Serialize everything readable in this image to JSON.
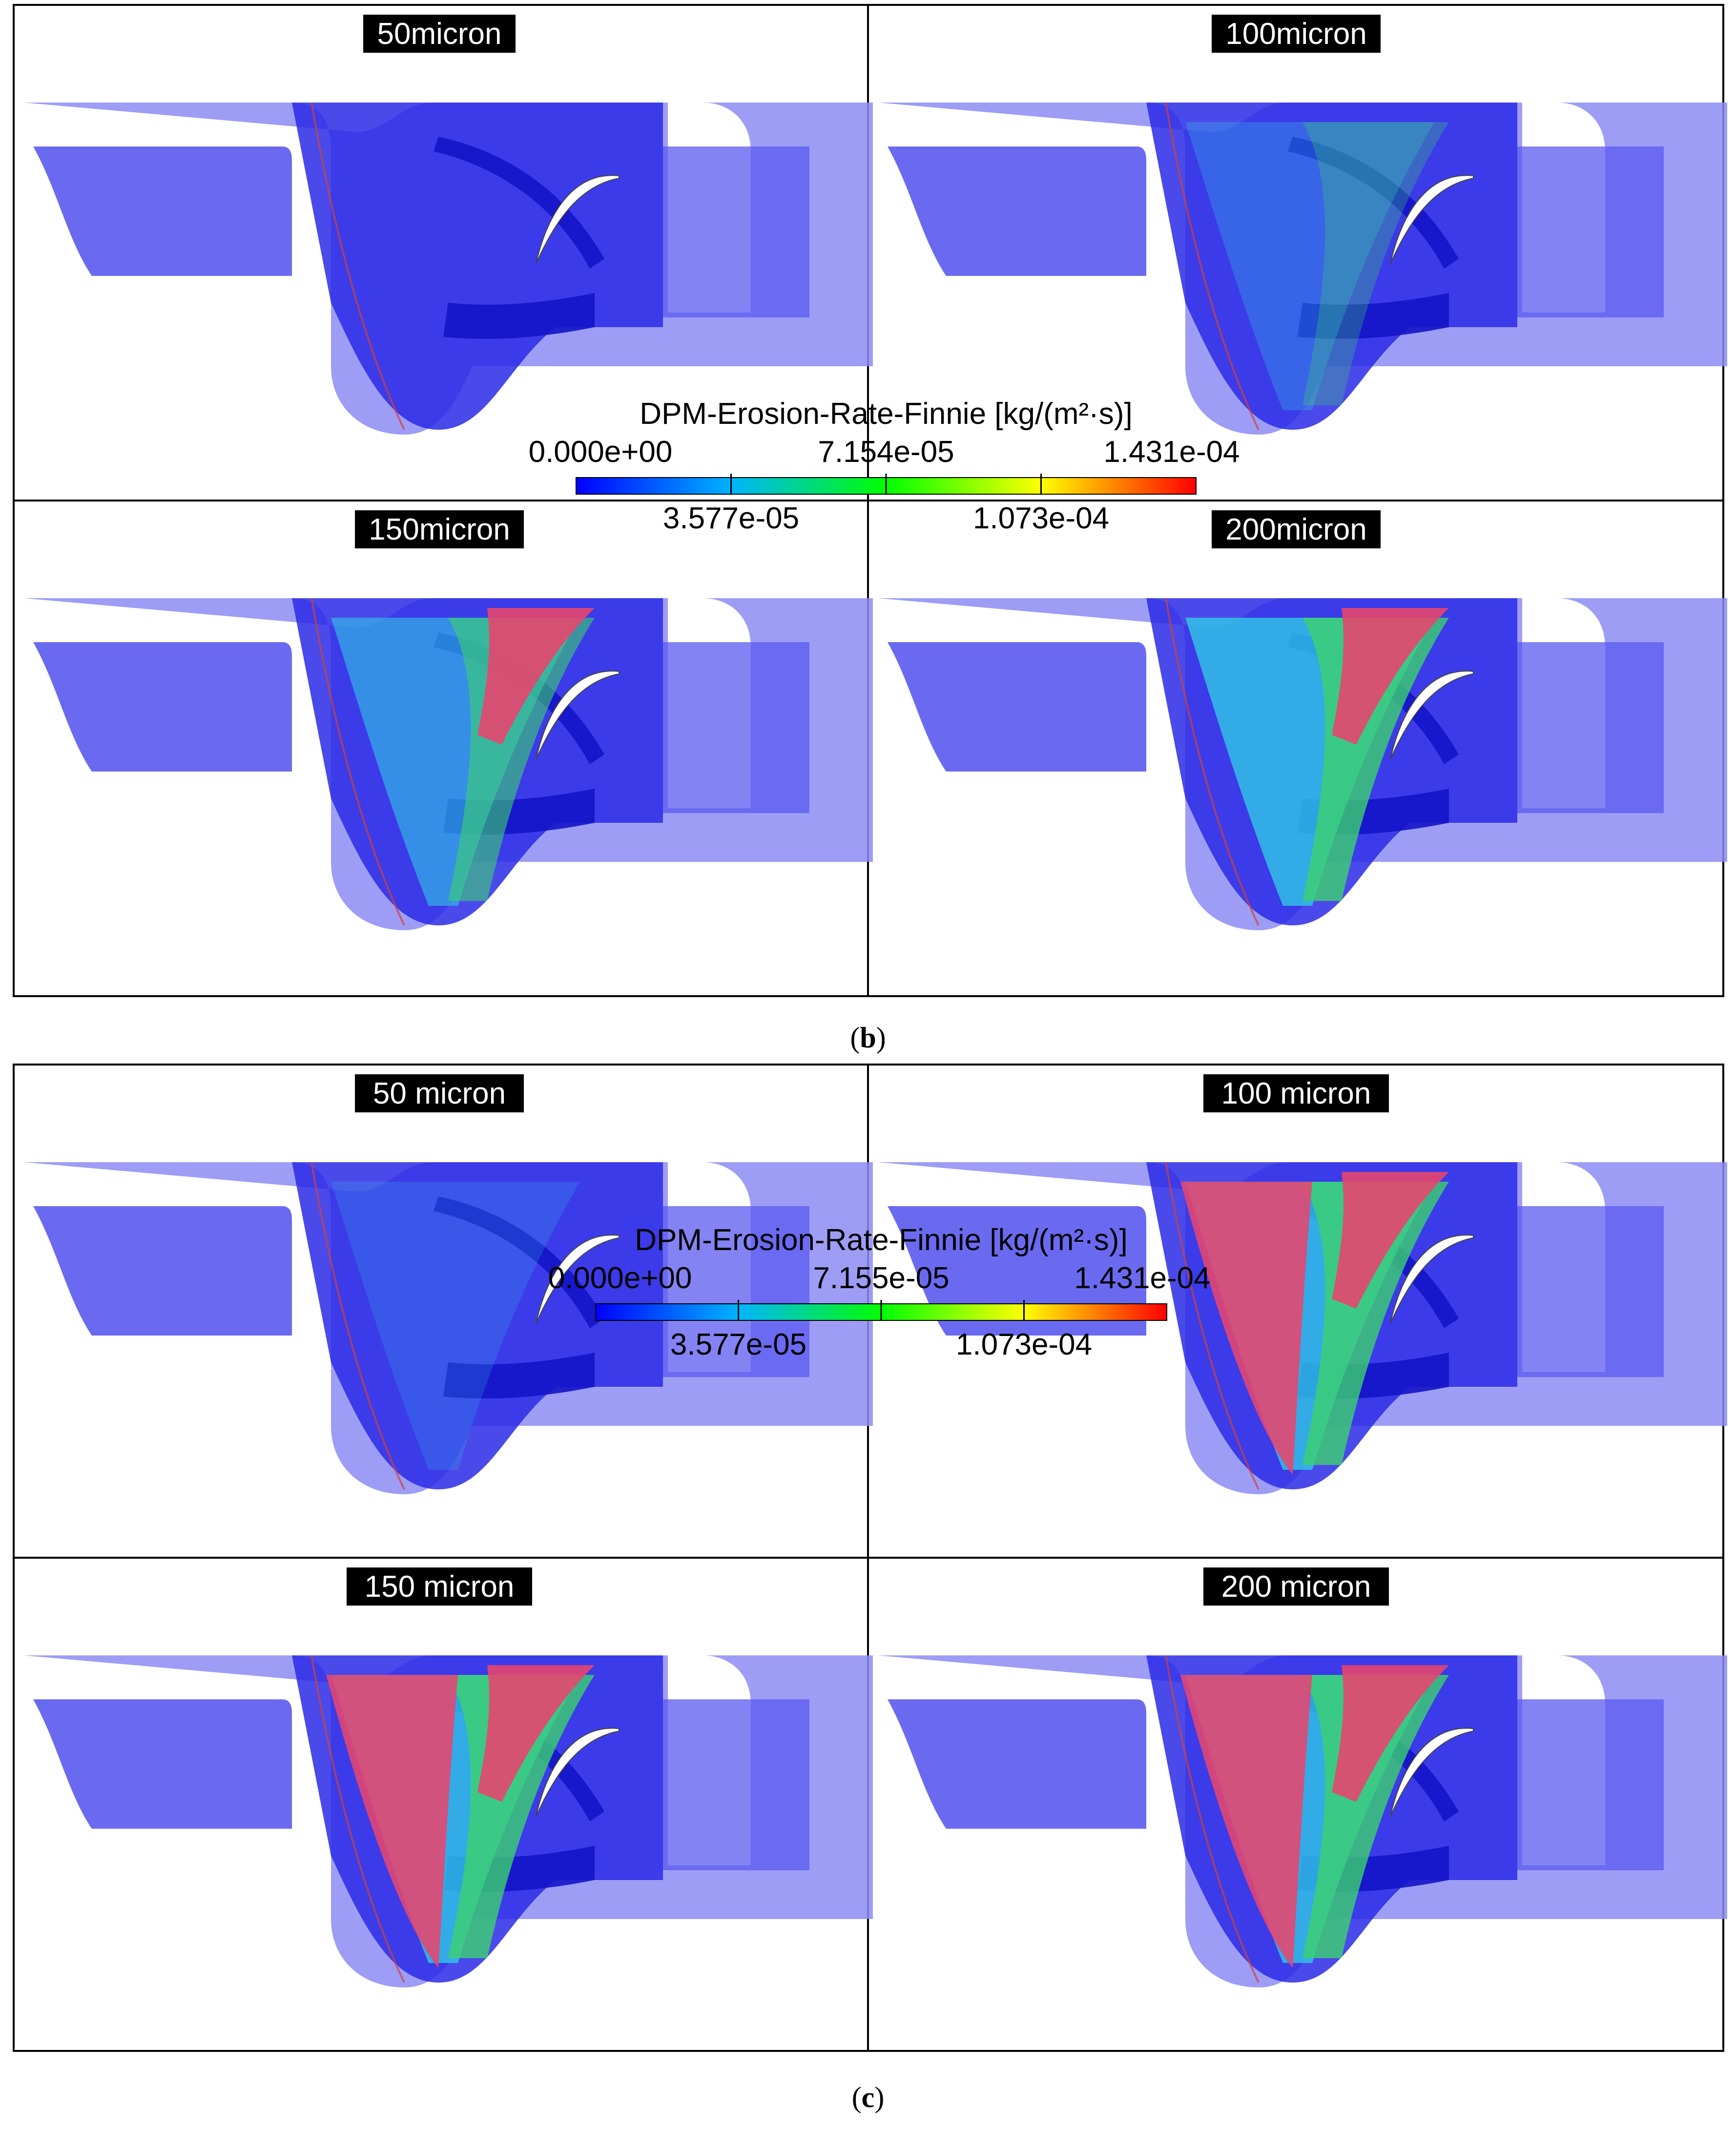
{
  "figures": [
    {
      "id": "b",
      "caption_letter": "b",
      "legend": {
        "title": "DPM-Erosion-Rate-Finnie [kg/(m²·s)]",
        "ticks_top": [
          "0.000e+00",
          "7.154e-05",
          "1.431e-04"
        ],
        "ticks_bottom": [
          "3.577e-05",
          "1.073e-04"
        ]
      },
      "panels": [
        {
          "label": "50micron",
          "erosion_level": 0.05
        },
        {
          "label": "100micron",
          "erosion_level": 0.3
        },
        {
          "label": "150micron",
          "erosion_level": 0.6
        },
        {
          "label": "200micron",
          "erosion_level": 0.8
        }
      ]
    },
    {
      "id": "c",
      "caption_letter": "c",
      "legend": {
        "title": "DPM-Erosion-Rate-Finnie [kg/(m²·s)]",
        "ticks_top": [
          "0.000e+00",
          "7.155e-05",
          "1.431e-04"
        ],
        "ticks_bottom": [
          "3.577e-05",
          "1.073e-04"
        ]
      },
      "panels": [
        {
          "label": "50 micron",
          "erosion_level": 0.2
        },
        {
          "label": "100 micron",
          "erosion_level": 0.85
        },
        {
          "label": "150 micron",
          "erosion_level": 0.95
        },
        {
          "label": "200 micron",
          "erosion_level": 0.95
        }
      ]
    }
  ],
  "colors": {
    "casing_light": "#8c8cf5",
    "casing_mid": "#5a5af0",
    "casing_dark": "#2a2ae6",
    "blade_dark": "#1414c8",
    "erosion_cyan": "#32c8e6",
    "erosion_green": "#3cd26e",
    "erosion_red": "#e6466e",
    "label_bg": "#000000",
    "label_text": "#ffffff"
  }
}
